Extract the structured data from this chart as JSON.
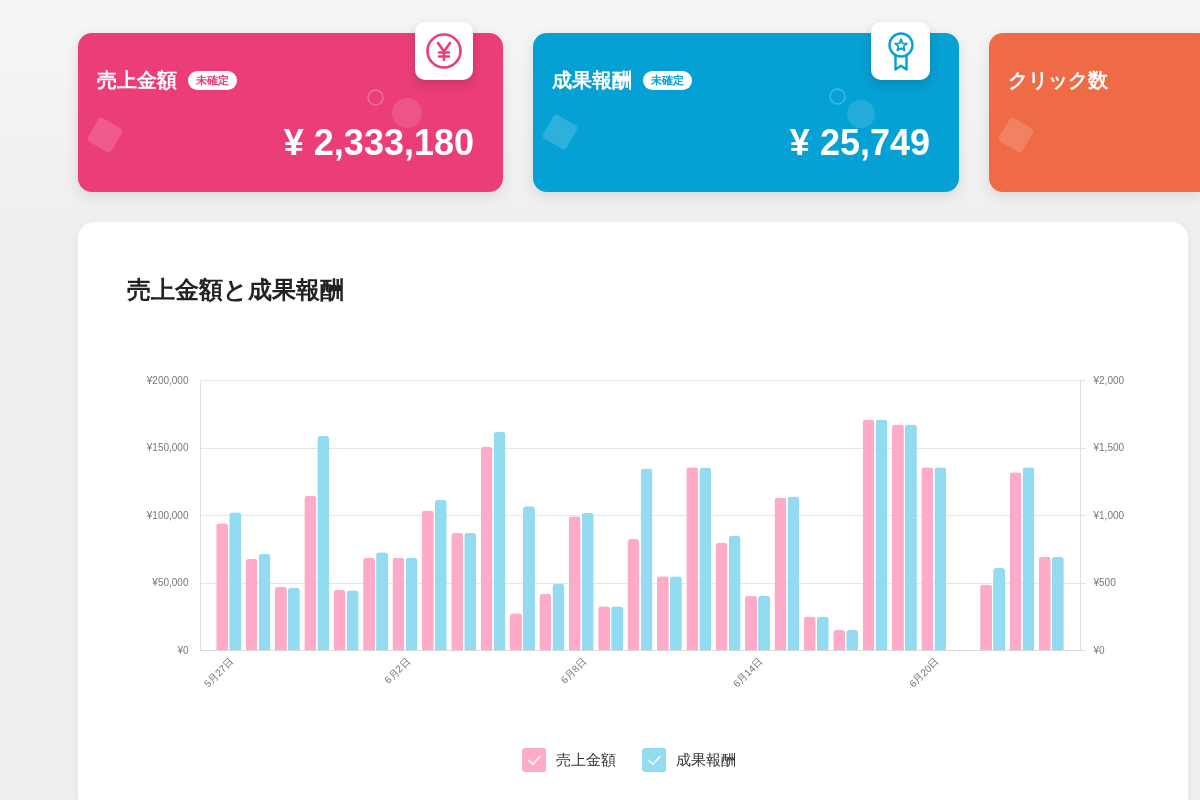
{
  "chart_data": [
    {
      "type": "other",
      "title": "売上金額",
      "subtitle": "未確定",
      "annotations": [
        "¥ 2,333,180"
      ]
    },
    {
      "type": "other",
      "title": "成果報酬",
      "subtitle": "未確定",
      "annotations": [
        "¥ 25,749"
      ]
    },
    {
      "type": "other",
      "title": "クリック数"
    },
    {
      "type": "bar",
      "title": "売上金額と成果報酬",
      "categories": [
        "5月27日",
        null,
        null,
        null,
        null,
        null,
        "6月2日",
        null,
        null,
        null,
        null,
        null,
        "6月8日",
        null,
        null,
        null,
        null,
        null,
        "6月14日",
        null,
        null,
        null,
        null,
        null,
        "6月20日",
        null,
        null,
        null,
        null
      ],
      "series": [
        {
          "name": "売上金額",
          "color": "#fdabc9",
          "values": [
            93800,
            67400,
            46700,
            114200,
            44500,
            68300,
            68300,
            103400,
            86700,
            150400,
            27200,
            41600,
            99000,
            32400,
            82200,
            54600,
            135300,
            79400,
            40100,
            112900,
            24800,
            14800,
            170700,
            167000,
            135400,
            null,
            48500,
            131700,
            69100
          ]
        },
        {
          "name": "成果報酬",
          "color": "#93dbf1",
          "axis": "y2",
          "values": [
            1020,
            711,
            462,
            1586,
            442,
            725,
            683,
            1113,
            867,
            1615,
            1065,
            490,
            1016,
            324,
            1345,
            546,
            1352,
            847,
            401,
            1137,
            248,
            148,
            1707,
            1670,
            1354,
            null,
            607,
            1354,
            691
          ]
        }
      ],
      "ylim": [
        0,
        200000
      ],
      "yticks": [
        {
          "value": 0,
          "label": "¥0"
        },
        {
          "value": 50000,
          "label": "¥50,000"
        },
        {
          "value": 100000,
          "label": "¥100,000"
        },
        {
          "value": 150000,
          "label": "¥150,000"
        },
        {
          "value": 200000,
          "label": "¥200,000"
        }
      ],
      "y2lim": [
        0,
        2000
      ],
      "y2ticks": [
        {
          "value": 0,
          "label": "¥0"
        },
        {
          "value": 500,
          "label": "¥500"
        },
        {
          "value": 1000,
          "label": "¥1,000"
        },
        {
          "value": 1500,
          "label": "¥1,500"
        },
        {
          "value": 2000,
          "label": "¥2,000"
        }
      ],
      "grid": "y",
      "legend": "bottom"
    }
  ]
}
